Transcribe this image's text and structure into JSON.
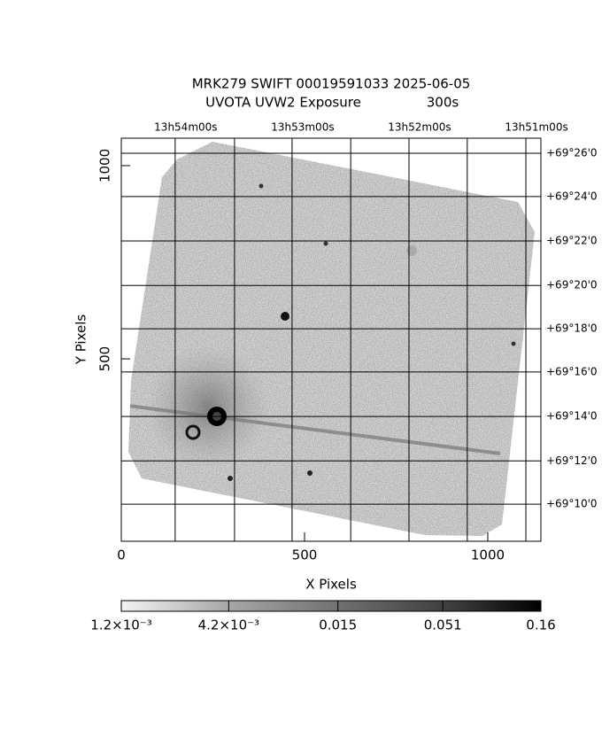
{
  "chart_data": {
    "type": "image",
    "title": "MRK279 SWIFT 00019591033 2025-06-05",
    "subtitle": "UVOTA UVW2 Exposure",
    "exposure": "300s",
    "xlabel": "X Pixels",
    "ylabel": "Y Pixels",
    "xlim": [
      0,
      1145
    ],
    "ylim": [
      28,
      1071
    ],
    "xticks": [
      0,
      500,
      1000
    ],
    "yticks": [
      500,
      1000
    ],
    "ra_grid": [
      147,
      309,
      466,
      626,
      785,
      944,
      1104
    ],
    "ra_ticks": [
      {
        "value": 147,
        "label": "13h54m00s"
      },
      {
        "value": 466,
        "label": "13h53m00s"
      },
      {
        "value": 785,
        "label": "13h52m00s"
      },
      {
        "value": 1104,
        "label": "13h51m00s"
      }
    ],
    "dec_ticks": [
      {
        "value": 1032,
        "label": "+69°26'0"
      },
      {
        "value": 920,
        "label": "+69°24'0"
      },
      {
        "value": 805,
        "label": "+69°22'0"
      },
      {
        "value": 690,
        "label": "+69°20'0"
      },
      {
        "value": 578,
        "label": "+69°18'0"
      },
      {
        "value": 466,
        "label": "+69°16'0"
      },
      {
        "value": 351,
        "label": "+69°14'0"
      },
      {
        "value": 236,
        "label": "+69°12'0"
      },
      {
        "value": 124,
        "label": "+69°10'0"
      }
    ],
    "colorbar": {
      "scale": "log",
      "lim": [
        0.0012,
        0.16
      ],
      "ticks": [
        {
          "value": 0.0012,
          "label": "1.2×10⁻³"
        },
        {
          "value": 0.0042,
          "label": "4.2×10⁻³"
        },
        0.015,
        0.051,
        0.16
      ]
    }
  }
}
